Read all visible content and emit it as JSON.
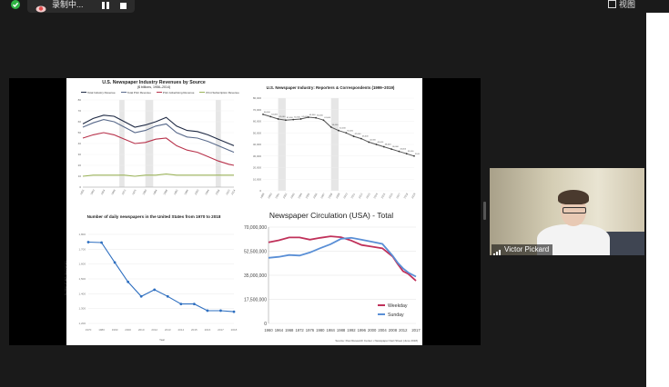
{
  "toolbar": {
    "recording_label": "录制中...",
    "view_label": "视图"
  },
  "participant": {
    "name": "Victor Pickard"
  },
  "slide": {
    "revenue_chart": {
      "title": "U.S. Newspaper Industry Revenues by Source",
      "subtitle": "($ billions, 1956–2014)",
      "chart_data": {
        "type": "line",
        "title": "U.S. Newspaper Industry Revenues by Source",
        "legend": [
          "Total Industry Revenue",
          "Total Print Revenue",
          "Print Advertising Revenue",
          "Print Subscription Revenue"
        ],
        "ylim": [
          0,
          80
        ],
        "grid": true,
        "x": [
          1956,
          1960,
          1964,
          1968,
          1972,
          1976,
          1980,
          1984,
          1988,
          1992,
          1996,
          2000,
          2004,
          2008,
          2012,
          2014
        ],
        "series": [
          {
            "name": "Total Industry Revenue",
            "color": "#1f2a44",
            "values": [
              58,
              63,
              66,
              65,
              60,
              55,
              57,
              60,
              64,
              56,
              52,
              51,
              48,
              44,
              40,
              38
            ]
          },
          {
            "name": "Total Print Revenue",
            "color": "#5a6b8c",
            "values": [
              55,
              59,
              62,
              60,
              55,
              50,
              52,
              56,
              58,
              50,
              46,
              45,
              42,
              38,
              34,
              32
            ]
          },
          {
            "name": "Print Advertising Revenue",
            "color": "#b8324b",
            "values": [
              45,
              48,
              50,
              48,
              44,
              40,
              41,
              44,
              45,
              38,
              34,
              32,
              28,
              24,
              21,
              20
            ]
          },
          {
            "name": "Print Subscription Revenue",
            "color": "#9bb35a",
            "values": [
              10,
              11,
              11,
              11,
              11,
              10,
              11,
              11,
              12,
              11,
              11,
              11,
              11,
              11,
              11,
              11
            ]
          }
        ]
      }
    },
    "reporters_chart": {
      "title": "U.S. Newspaper Industry: Reporters & Correspondents (1999–2019)",
      "chart_data": {
        "type": "line",
        "title": "U.S. Newspaper Industry: Reporters & Correspondents (1999–2019)",
        "ylim": [
          0,
          80000
        ],
        "yticks": [
          "0",
          "10,000",
          "20,000",
          "30,000",
          "40,000",
          "50,000",
          "60,000",
          "70,000",
          "80,000"
        ],
        "grid": true,
        "x": [
          1999,
          2000,
          2001,
          2002,
          2003,
          2004,
          2005,
          2006,
          2007,
          2008,
          2009,
          2010,
          2011,
          2012,
          2013,
          2014,
          2015,
          2016,
          2017,
          2018,
          2019
        ],
        "values": [
          66000,
          64000,
          62000,
          61000,
          61500,
          62000,
          63500,
          63000,
          61000,
          55000,
          52000,
          50000,
          47000,
          45000,
          42000,
          40000,
          38000,
          36000,
          34000,
          32000,
          30000
        ]
      }
    },
    "daily_papers_chart": {
      "title": "Number of daily newspapers in the United States from 1970 to 2018",
      "ylabel": "Number of daily newspapers",
      "xlabel": "Year",
      "chart_data": {
        "type": "line",
        "title": "Number of daily newspapers in the United States from 1970 to 2018",
        "xlabel": "Year",
        "ylabel": "Number of daily newspapers",
        "categories": [
          "1970",
          "1980",
          "1990",
          "2000",
          "2010",
          "2012",
          "2013",
          "2014",
          "2015",
          "2016",
          "2017",
          "2018"
        ],
        "values": [
          1748,
          1745,
          1611,
          1480,
          1382,
          1427,
          1382,
          1331,
          1331,
          1286,
          1286,
          1279
        ],
        "ylim": [
          1200,
          1800
        ],
        "grid": true
      }
    },
    "circulation_chart": {
      "title": "Newspaper Circulation (USA) - Total",
      "source": "Source: Pew Research Center • Newspaper Fact Sheet (June 2018)",
      "chart_data": {
        "type": "line",
        "title": "Newspaper Circulation (USA) - Total",
        "ylim": [
          0,
          70000000
        ],
        "yticks": [
          "0",
          "17,500,000",
          "35,000,000",
          "52,500,000",
          "70,000,000"
        ],
        "xticks": [
          "1960",
          "1964",
          "1968",
          "1972",
          "1976",
          "1980",
          "1984",
          "1988",
          "1992",
          "1996",
          "2000",
          "2004",
          "2008",
          "2012",
          "2017"
        ],
        "grid": true,
        "legend_position": "bottom-right",
        "series": [
          {
            "name": "Weekday",
            "color": "#c0315a",
            "x": [
              1960,
              1964,
              1968,
              1972,
              1976,
              1980,
              1984,
              1988,
              1992,
              1996,
              2000,
              2004,
              2008,
              2010,
              2012,
              2014,
              2017
            ],
            "values": [
              58900000,
              60400000,
              62500000,
              62500000,
              60900000,
              62200000,
              63300000,
              62700000,
              60200000,
              57000000,
              55800000,
              54600000,
              48600000,
              43000000,
              38000000,
              36000000,
              31000000
            ]
          },
          {
            "name": "Sunday",
            "color": "#5a8fd6",
            "x": [
              1960,
              1964,
              1968,
              1972,
              1976,
              1980,
              1984,
              1988,
              1992,
              1996,
              2000,
              2004,
              2008,
              2010,
              2012,
              2014,
              2017
            ],
            "values": [
              47700000,
              48400000,
              49700000,
              49300000,
              51600000,
              54700000,
              57600000,
              61500000,
              62200000,
              60800000,
              59400000,
              57800000,
              49100000,
              44000000,
              40000000,
              37000000,
              34000000
            ]
          }
        ]
      }
    }
  }
}
